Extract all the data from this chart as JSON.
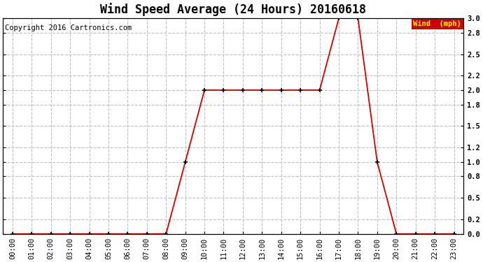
{
  "title": "Wind Speed Average (24 Hours) 20160618",
  "copyright": "Copyright 2016 Cartronics.com",
  "legend_label": "Wind  (mph)",
  "legend_bg": "#cc0000",
  "legend_text_color": "#ffff00",
  "line_color": "#cc0000",
  "marker_color": "#000000",
  "bg_color": "#ffffff",
  "plot_bg_color": "#ffffff",
  "grid_color": "#c0c0c0",
  "hours": [
    0,
    1,
    2,
    3,
    4,
    5,
    6,
    7,
    8,
    9,
    10,
    11,
    12,
    13,
    14,
    15,
    16,
    17,
    18,
    19,
    20,
    21,
    22,
    23
  ],
  "values": [
    0.0,
    0.0,
    0.0,
    0.0,
    0.0,
    0.0,
    0.0,
    0.0,
    0.0,
    1.0,
    2.0,
    2.0,
    2.0,
    2.0,
    2.0,
    2.0,
    2.0,
    3.0,
    3.0,
    1.0,
    0.0,
    0.0,
    0.0,
    0.0
  ],
  "ylim": [
    0.0,
    3.0
  ],
  "yticks": [
    0.0,
    0.2,
    0.5,
    0.8,
    1.0,
    1.2,
    1.5,
    1.8,
    2.0,
    2.2,
    2.5,
    2.8,
    3.0
  ],
  "ytick_labels": [
    "0.0",
    "0.2",
    "0.5",
    "0.8",
    "1.0",
    "1.2",
    "1.5",
    "1.8",
    "2.0",
    "2.2",
    "2.5",
    "2.8",
    "3.0"
  ],
  "title_fontsize": 12,
  "axis_fontsize": 7.5,
  "copyright_fontsize": 7.5
}
